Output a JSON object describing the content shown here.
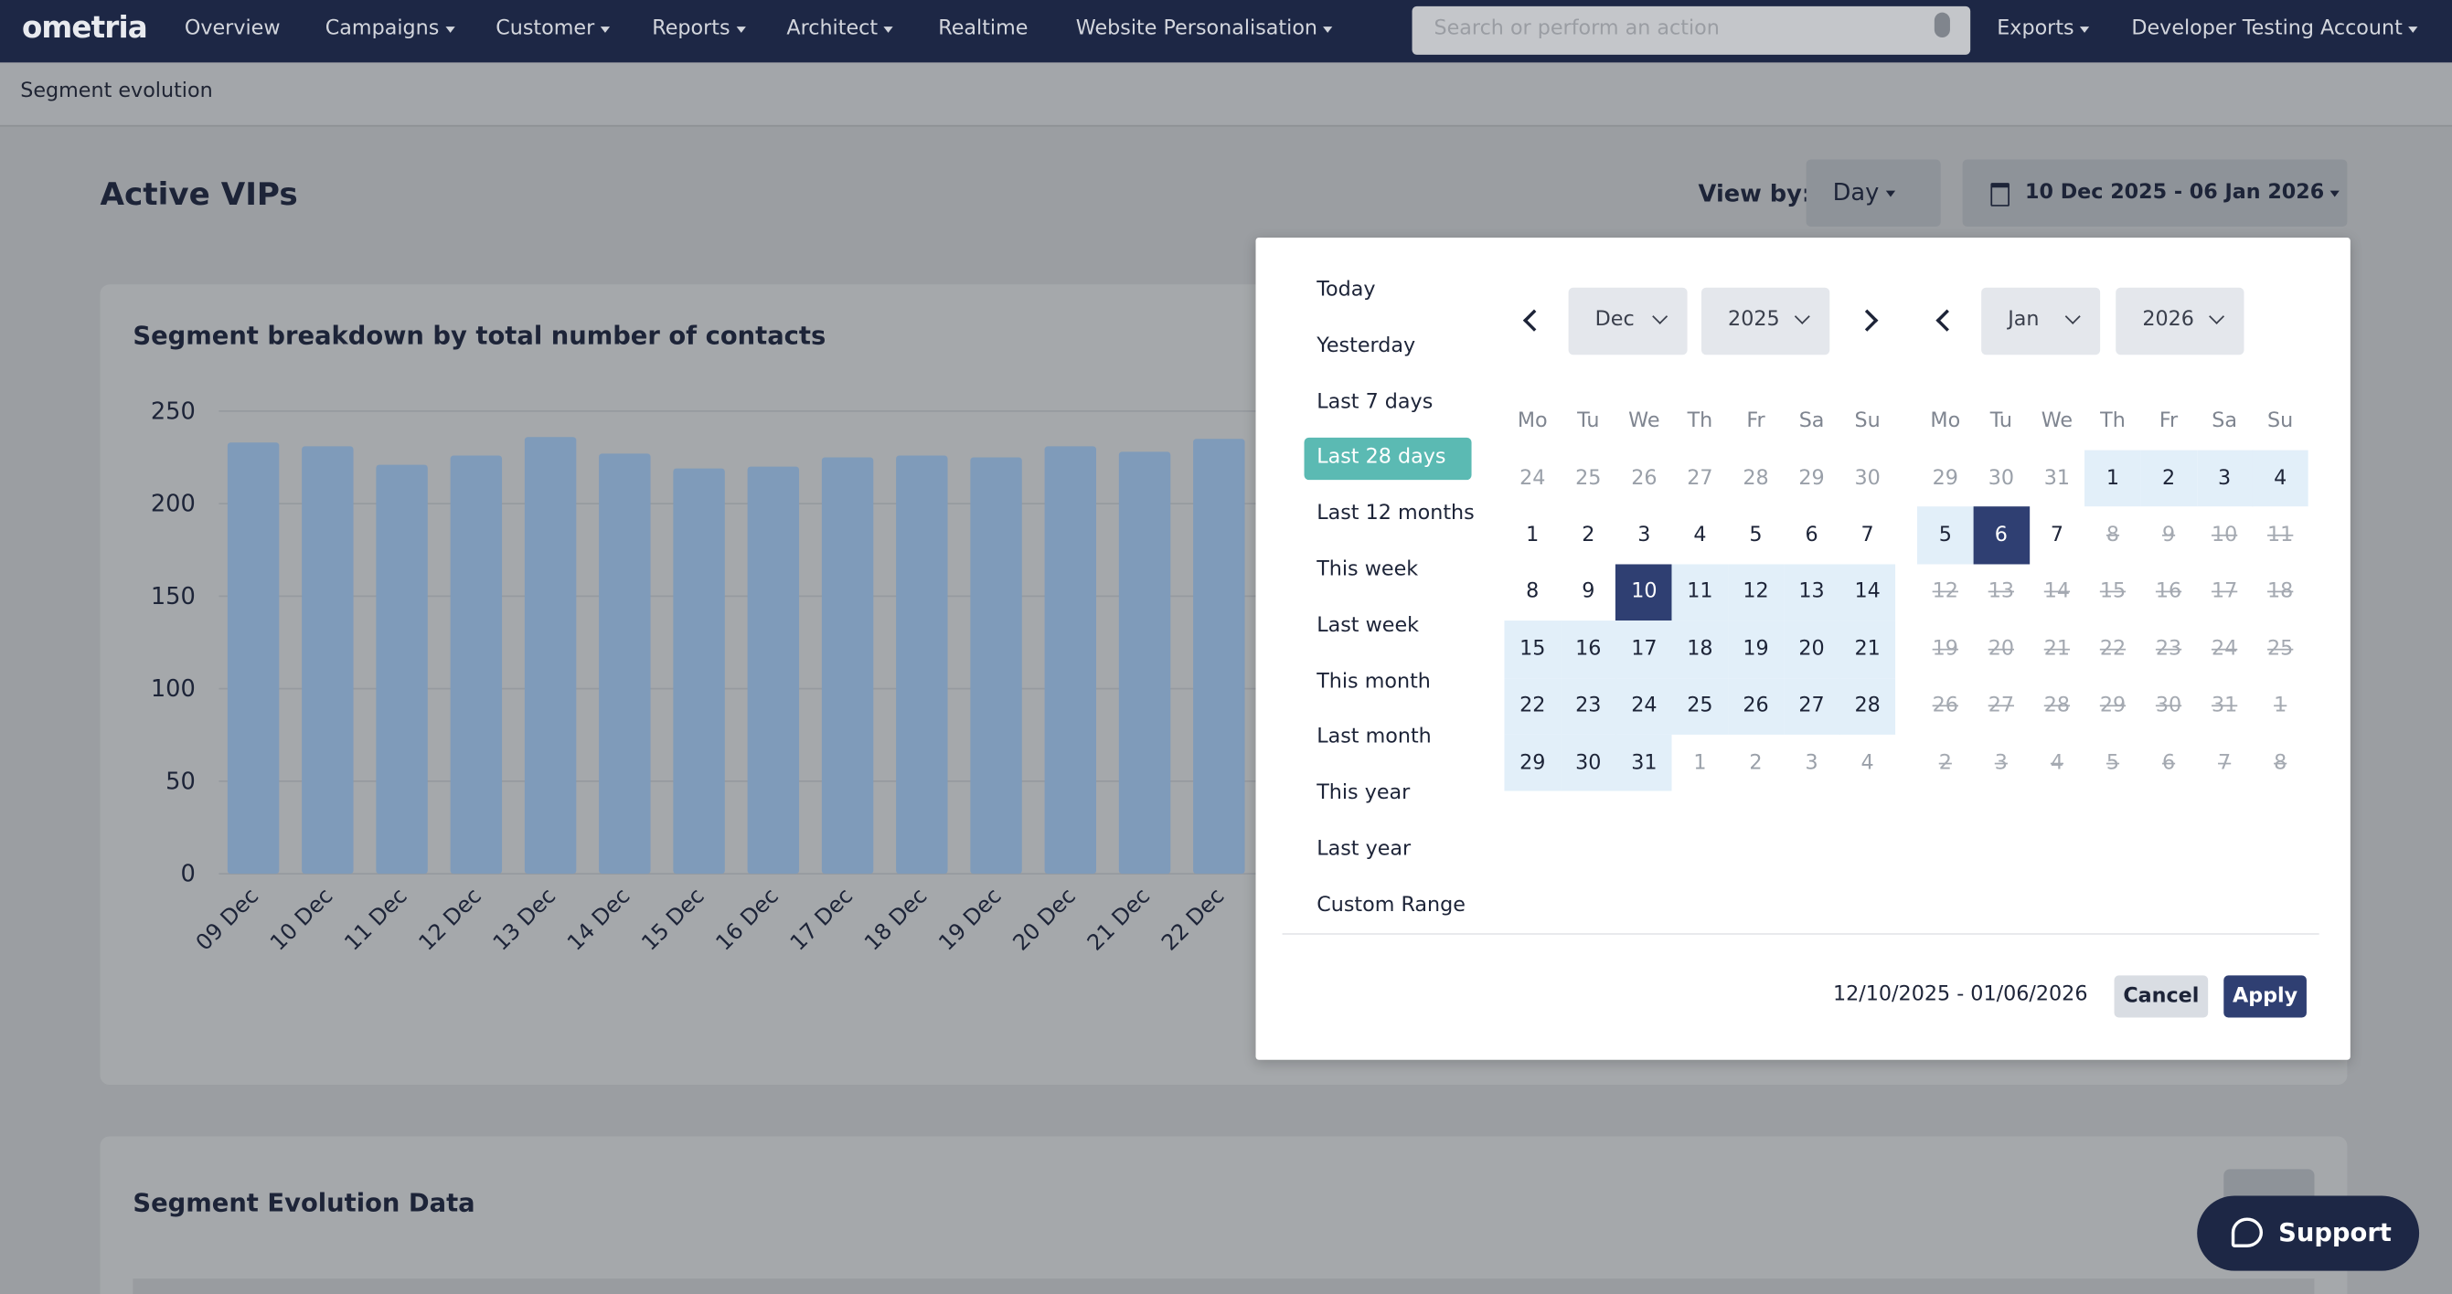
{
  "nav": {
    "logo": "ometria",
    "items": [
      {
        "label": "Overview",
        "caret": false
      },
      {
        "label": "Campaigns",
        "caret": true
      },
      {
        "label": "Customer",
        "caret": true
      },
      {
        "label": "Reports",
        "caret": true
      },
      {
        "label": "Architect",
        "caret": true
      },
      {
        "label": "Realtime",
        "caret": false
      },
      {
        "label": "Website Personalisation",
        "caret": true
      }
    ],
    "search_placeholder": "Search or perform an action",
    "exports": "Exports",
    "account": "Developer Testing Account"
  },
  "breadcrumb": "Segment evolution",
  "header": {
    "title": "Active VIPs",
    "view_by_label": "View by:",
    "view_by_value": "Day",
    "date_range": "10 Dec 2025 - 06 Jan 2026"
  },
  "chart_card": {
    "title": "Segment breakdown by total number of contacts",
    "chart": {
      "type": "bar",
      "categories": [
        "09 Dec",
        "10 Dec",
        "11 Dec",
        "12 Dec",
        "13 Dec",
        "14 Dec",
        "15 Dec",
        "16 Dec",
        "17 Dec",
        "18 Dec",
        "19 Dec",
        "20 Dec",
        "21 Dec",
        "22 Dec"
      ],
      "values": [
        233,
        231,
        221,
        226,
        236,
        227,
        219,
        220,
        225,
        226,
        225,
        231,
        228,
        235
      ],
      "color": "#7f9bba",
      "ylim": [
        0,
        250
      ],
      "yticks": [
        0,
        50,
        100,
        150,
        200,
        250
      ],
      "grid": true
    }
  },
  "datepicker": {
    "ranges": [
      {
        "label": "Today"
      },
      {
        "label": "Yesterday"
      },
      {
        "label": "Last 7 days"
      },
      {
        "label": "Last 28 days",
        "active": true
      },
      {
        "label": "Last 12 months"
      },
      {
        "label": "This week"
      },
      {
        "label": "Last week"
      },
      {
        "label": "This month"
      },
      {
        "label": "Last month"
      },
      {
        "label": "This year"
      },
      {
        "label": "Last year"
      },
      {
        "label": "Custom Range"
      }
    ],
    "calendars": [
      {
        "month": "Dec",
        "year": "2025",
        "weekdays": [
          "Mo",
          "Tu",
          "We",
          "Th",
          "Fr",
          "Sa",
          "Su"
        ],
        "weeks": [
          [
            {
              "day": "24",
              "state": "outside"
            },
            {
              "day": "25",
              "state": "outside"
            },
            {
              "day": "26",
              "state": "outside"
            },
            {
              "day": "27",
              "state": "outside"
            },
            {
              "day": "28",
              "state": "outside"
            },
            {
              "day": "29",
              "state": "outside"
            },
            {
              "day": "30",
              "state": "outside"
            }
          ],
          [
            {
              "day": "1",
              "state": "normal"
            },
            {
              "day": "2",
              "state": "normal"
            },
            {
              "day": "3",
              "state": "normal"
            },
            {
              "day": "4",
              "state": "normal"
            },
            {
              "day": "5",
              "state": "normal"
            },
            {
              "day": "6",
              "state": "normal"
            },
            {
              "day": "7",
              "state": "normal"
            }
          ],
          [
            {
              "day": "8",
              "state": "normal"
            },
            {
              "day": "9",
              "state": "normal"
            },
            {
              "day": "10",
              "state": "selected"
            },
            {
              "day": "11",
              "state": "range"
            },
            {
              "day": "12",
              "state": "range"
            },
            {
              "day": "13",
              "state": "range"
            },
            {
              "day": "14",
              "state": "range"
            }
          ],
          [
            {
              "day": "15",
              "state": "range"
            },
            {
              "day": "16",
              "state": "range"
            },
            {
              "day": "17",
              "state": "range"
            },
            {
              "day": "18",
              "state": "range"
            },
            {
              "day": "19",
              "state": "range"
            },
            {
              "day": "20",
              "state": "range"
            },
            {
              "day": "21",
              "state": "range"
            }
          ],
          [
            {
              "day": "22",
              "state": "range"
            },
            {
              "day": "23",
              "state": "range"
            },
            {
              "day": "24",
              "state": "range"
            },
            {
              "day": "25",
              "state": "range"
            },
            {
              "day": "26",
              "state": "range"
            },
            {
              "day": "27",
              "state": "range"
            },
            {
              "day": "28",
              "state": "range"
            }
          ],
          [
            {
              "day": "29",
              "state": "range"
            },
            {
              "day": "30",
              "state": "range"
            },
            {
              "day": "31",
              "state": "range"
            },
            {
              "day": "1",
              "state": "outside"
            },
            {
              "day": "2",
              "state": "outside"
            },
            {
              "day": "3",
              "state": "outside"
            },
            {
              "day": "4",
              "state": "outside"
            }
          ]
        ]
      },
      {
        "month": "Jan",
        "year": "2026",
        "weekdays": [
          "Mo",
          "Tu",
          "We",
          "Th",
          "Fr",
          "Sa",
          "Su"
        ],
        "weeks": [
          [
            {
              "day": "29",
              "state": "outside"
            },
            {
              "day": "30",
              "state": "outside"
            },
            {
              "day": "31",
              "state": "outside"
            },
            {
              "day": "1",
              "state": "range"
            },
            {
              "day": "2",
              "state": "range"
            },
            {
              "day": "3",
              "state": "range"
            },
            {
              "day": "4",
              "state": "range"
            }
          ],
          [
            {
              "day": "5",
              "state": "range"
            },
            {
              "day": "6",
              "state": "selected"
            },
            {
              "day": "7",
              "state": "normal"
            },
            {
              "day": "8",
              "state": "disabled"
            },
            {
              "day": "9",
              "state": "disabled"
            },
            {
              "day": "10",
              "state": "disabled"
            },
            {
              "day": "11",
              "state": "disabled"
            }
          ],
          [
            {
              "day": "12",
              "state": "disabled"
            },
            {
              "day": "13",
              "state": "disabled"
            },
            {
              "day": "14",
              "state": "disabled"
            },
            {
              "day": "15",
              "state": "disabled"
            },
            {
              "day": "16",
              "state": "disabled"
            },
            {
              "day": "17",
              "state": "disabled"
            },
            {
              "day": "18",
              "state": "disabled"
            }
          ],
          [
            {
              "day": "19",
              "state": "disabled"
            },
            {
              "day": "20",
              "state": "disabled"
            },
            {
              "day": "21",
              "state": "disabled"
            },
            {
              "day": "22",
              "state": "disabled"
            },
            {
              "day": "23",
              "state": "disabled"
            },
            {
              "day": "24",
              "state": "disabled"
            },
            {
              "day": "25",
              "state": "disabled"
            }
          ],
          [
            {
              "day": "26",
              "state": "disabled"
            },
            {
              "day": "27",
              "state": "disabled"
            },
            {
              "day": "28",
              "state": "disabled"
            },
            {
              "day": "29",
              "state": "disabled"
            },
            {
              "day": "30",
              "state": "disabled"
            },
            {
              "day": "31",
              "state": "disabled"
            },
            {
              "day": "1",
              "state": "disabled"
            }
          ],
          [
            {
              "day": "2",
              "state": "disabled"
            },
            {
              "day": "3",
              "state": "disabled"
            },
            {
              "day": "4",
              "state": "disabled"
            },
            {
              "day": "5",
              "state": "disabled"
            },
            {
              "day": "6",
              "state": "disabled"
            },
            {
              "day": "7",
              "state": "disabled"
            },
            {
              "day": "8",
              "state": "disabled"
            }
          ]
        ]
      }
    ],
    "footer_range": "12/10/2025 - 01/06/2026",
    "cancel": "Cancel",
    "apply": "Apply"
  },
  "data_card": {
    "title": "Segment Evolution Data"
  },
  "support": "Support"
}
